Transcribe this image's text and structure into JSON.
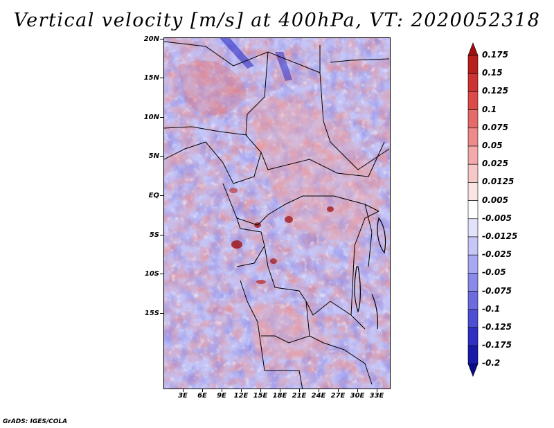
{
  "title": "Vertical velocity [m/s] at 400hPa, VT: 2020052318",
  "credit": "GrADS: IGES/COLA",
  "map": {
    "lat_labels": [
      "20N",
      "15N",
      "10N",
      "5N",
      "EQ",
      "5S",
      "10S",
      "15S"
    ],
    "lon_labels": [
      "3E",
      "6E",
      "9E",
      "12E",
      "15E",
      "18E",
      "21E",
      "24E",
      "27E",
      "30E",
      "33E"
    ]
  },
  "colorbar": {
    "levels": [
      "0.175",
      "0.15",
      "0.125",
      "0.1",
      "0.075",
      "0.05",
      "0.025",
      "0.0125",
      "0.005",
      "-0.005",
      "-0.0125",
      "-0.025",
      "-0.05",
      "-0.075",
      "-0.1",
      "-0.125",
      "-0.175",
      "-0.2"
    ],
    "colors": [
      "#a01010",
      "#b82020",
      "#cc3333",
      "#dc4a4a",
      "#e66a6a",
      "#ee8a8a",
      "#f4aaaa",
      "#f8c8c8",
      "#fce4e4",
      "#ffffff",
      "#e2e2fc",
      "#c6c6f8",
      "#a8a8f2",
      "#8a8aea",
      "#6c6ce0",
      "#4e4ed4",
      "#3030c4",
      "#1a1aa8",
      "#0c0c88"
    ]
  }
}
